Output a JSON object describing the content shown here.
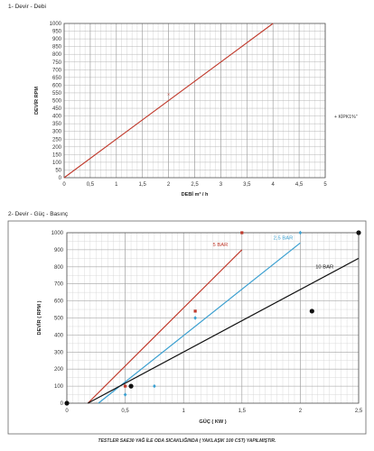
{
  "sections": {
    "title1": "1- Devir - Debi",
    "title2": "2- Devir - Güç - Basınç",
    "footer": "TESTLER SAE30 YAĞ İLE ODA SICAKLIĞINDA ( YAKLAŞIK 100 CST) YAPILMIŞTIR."
  },
  "chart_data": [
    {
      "type": "line",
      "xlabel": "DEBİ m³ / h",
      "ylabel": "DEVİR RPM",
      "xlim": [
        0,
        5
      ],
      "ylim": [
        0,
        1000
      ],
      "xticks": [
        0,
        0.5,
        1,
        1.5,
        2,
        2.5,
        3,
        3.5,
        4,
        4.5,
        5
      ],
      "xtick_labels": [
        "0",
        "0,5",
        "1",
        "1,5",
        "2",
        "2,5",
        "3",
        "3,5",
        "4",
        "4,5",
        "5"
      ],
      "yticks": [
        0,
        50,
        100,
        150,
        200,
        250,
        300,
        350,
        400,
        450,
        500,
        550,
        600,
        650,
        700,
        750,
        800,
        850,
        900,
        950,
        1000
      ],
      "ytick_labels": [
        "0",
        "50",
        "100",
        "150",
        "200",
        "250",
        "300",
        "350",
        "400",
        "450",
        "500",
        "550",
        "600",
        "650",
        "700",
        "750",
        "800",
        "850",
        "900",
        "950",
        "1000"
      ],
      "grid": true,
      "legend_position": "right",
      "series": [
        {
          "name": "KİPK1%\"",
          "color": "#c0392b",
          "x": [
            0,
            4
          ],
          "y": [
            0,
            1000
          ]
        }
      ],
      "points": [
        {
          "x": 2,
          "y": 540,
          "color": "#c0392b"
        }
      ]
    },
    {
      "type": "line",
      "xlabel": "GÜÇ ( KW )",
      "ylabel": "DEVİR ( RPM )",
      "xlim": [
        0,
        2.5
      ],
      "ylim": [
        0,
        1000
      ],
      "xticks": [
        0,
        0.5,
        1,
        1.5,
        2,
        2.5
      ],
      "xtick_labels": [
        "0",
        "0,5",
        "1",
        "1,5",
        "2",
        "2,5"
      ],
      "yticks": [
        0,
        100,
        200,
        300,
        400,
        500,
        600,
        700,
        800,
        900,
        1000
      ],
      "ytick_labels": [
        "0",
        "100",
        "200",
        "300",
        "400",
        "500",
        "600",
        "700",
        "800",
        "900",
        "1000"
      ],
      "grid": true,
      "series": [
        {
          "name": "5 BAR",
          "color": "#c0392b",
          "x": [
            0.18,
            1.5
          ],
          "y": [
            0,
            900
          ],
          "points": [
            {
              "x": 0.5,
              "y": 100
            },
            {
              "x": 1.1,
              "y": 540
            },
            {
              "x": 1.5,
              "y": 1000
            }
          ]
        },
        {
          "name": "2,5 BAR",
          "color": "#3a9fd0",
          "x": [
            0.27,
            2.0
          ],
          "y": [
            0,
            940
          ],
          "points": [
            {
              "x": 0.5,
              "y": 50
            },
            {
              "x": 0.75,
              "y": 100
            },
            {
              "x": 1.1,
              "y": 500
            },
            {
              "x": 2.0,
              "y": 1000
            }
          ]
        },
        {
          "name": "10 BAR",
          "color": "#111111",
          "x": [
            0.18,
            2.5
          ],
          "y": [
            0,
            850
          ],
          "points": [
            {
              "x": 0.0,
              "y": 0
            },
            {
              "x": 0.55,
              "y": 100
            },
            {
              "x": 2.1,
              "y": 540
            },
            {
              "x": 2.5,
              "y": 1000
            }
          ]
        }
      ]
    }
  ]
}
